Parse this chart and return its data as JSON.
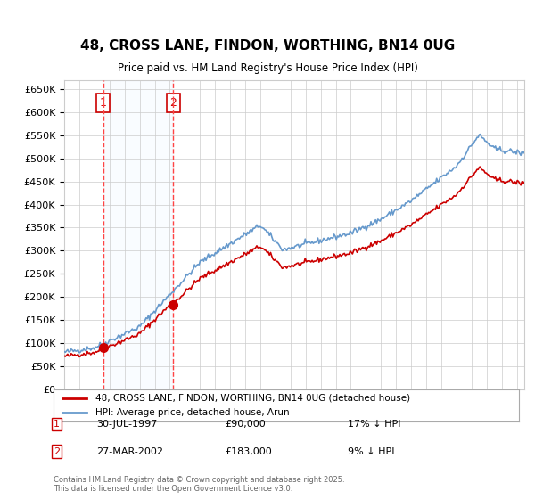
{
  "title": "48, CROSS LANE, FINDON, WORTHING, BN14 0UG",
  "subtitle": "Price paid vs. HM Land Registry's House Price Index (HPI)",
  "legend_line1": "48, CROSS LANE, FINDON, WORTHING, BN14 0UG (detached house)",
  "legend_line2": "HPI: Average price, detached house, Arun",
  "footer": "Contains HM Land Registry data © Crown copyright and database right 2025.\nThis data is licensed under the Open Government Licence v3.0.",
  "sale1_date": "30-JUL-1997",
  "sale1_price": 90000,
  "sale1_label": "17% ↓ HPI",
  "sale2_date": "27-MAR-2002",
  "sale2_price": 183000,
  "sale2_label": "9% ↓ HPI",
  "sale1_x": 1997.58,
  "sale2_x": 2002.24,
  "price_line_color": "#cc0000",
  "hpi_line_color": "#6699cc",
  "sale_marker_color": "#cc0000",
  "dashed_line_color": "#ff4444",
  "shade_color": "#ddeeff",
  "grid_color": "#cccccc",
  "background_color": "#ffffff",
  "ylim": [
    0,
    670000
  ],
  "xlim_start": 1995.0,
  "xlim_end": 2025.5,
  "ytick_step": 50000
}
